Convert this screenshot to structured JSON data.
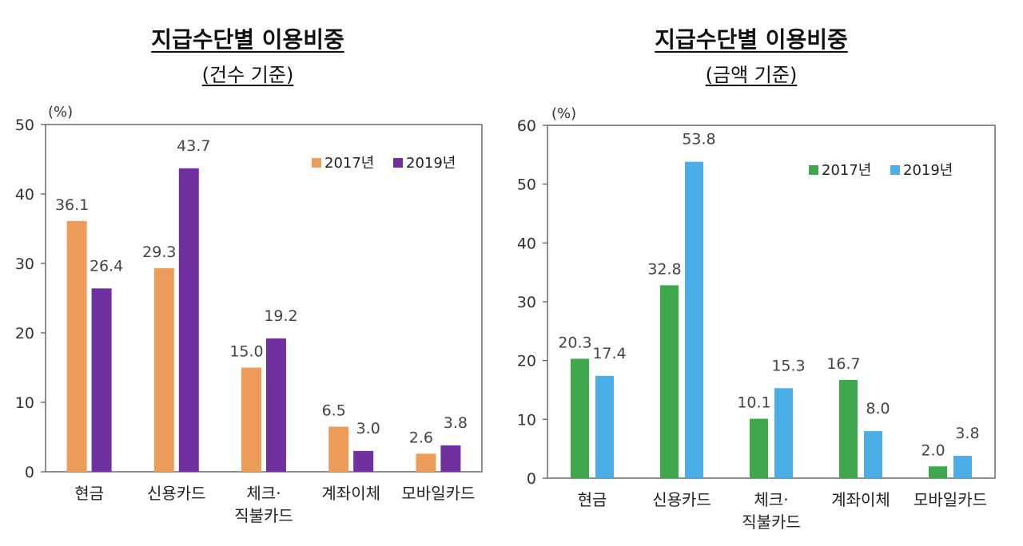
{
  "colors": {
    "left_2017": "#ED9D59",
    "left_2019": "#7030A0",
    "right_2017": "#3FA84C",
    "right_2019": "#4BAEE8"
  },
  "chart_data": [
    {
      "type": "bar",
      "title": "지급수단별 이용비중",
      "subtitle": "(건수 기준)",
      "ylabel": "(%)",
      "ylim": [
        0,
        50
      ],
      "yticks": [
        "0",
        "10",
        "20",
        "30",
        "40",
        "50"
      ],
      "categories": [
        [
          "현금"
        ],
        [
          "신용카드"
        ],
        [
          "체크·",
          "직불카드"
        ],
        [
          "계좌이체"
        ],
        [
          "모바일카드"
        ]
      ],
      "series": [
        {
          "name": "2017년",
          "values": [
            36.1,
            29.3,
            15.0,
            6.5,
            2.6
          ],
          "labels": [
            "36.1",
            "29.3",
            "15.0",
            "6.5",
            "2.6"
          ]
        },
        {
          "name": "2019년",
          "values": [
            26.4,
            43.7,
            19.2,
            3.0,
            3.8
          ],
          "labels": [
            "26.4",
            "43.7",
            "19.2",
            "3.0",
            "3.8"
          ]
        }
      ],
      "legend": "top-right"
    },
    {
      "type": "bar",
      "title": "지급수단별 이용비중",
      "subtitle": "(금액 기준)",
      "ylabel": "(%)",
      "ylim": [
        0,
        60
      ],
      "yticks": [
        "0",
        "10",
        "20",
        "30",
        "40",
        "50",
        "60"
      ],
      "categories": [
        [
          "현금"
        ],
        [
          "신용카드"
        ],
        [
          "체크·",
          "직불카드"
        ],
        [
          "계좌이체"
        ],
        [
          "모바일카드"
        ]
      ],
      "series": [
        {
          "name": "2017년",
          "values": [
            20.3,
            32.8,
            10.1,
            16.7,
            2.0
          ],
          "labels": [
            "20.3",
            "32.8",
            "10.1",
            "16.7",
            "2.0"
          ]
        },
        {
          "name": "2019년",
          "values": [
            17.4,
            53.8,
            15.3,
            8.0,
            3.8
          ],
          "labels": [
            "17.4",
            "53.8",
            "15.3",
            "8.0",
            "3.8"
          ]
        }
      ],
      "legend": "top-right"
    }
  ]
}
